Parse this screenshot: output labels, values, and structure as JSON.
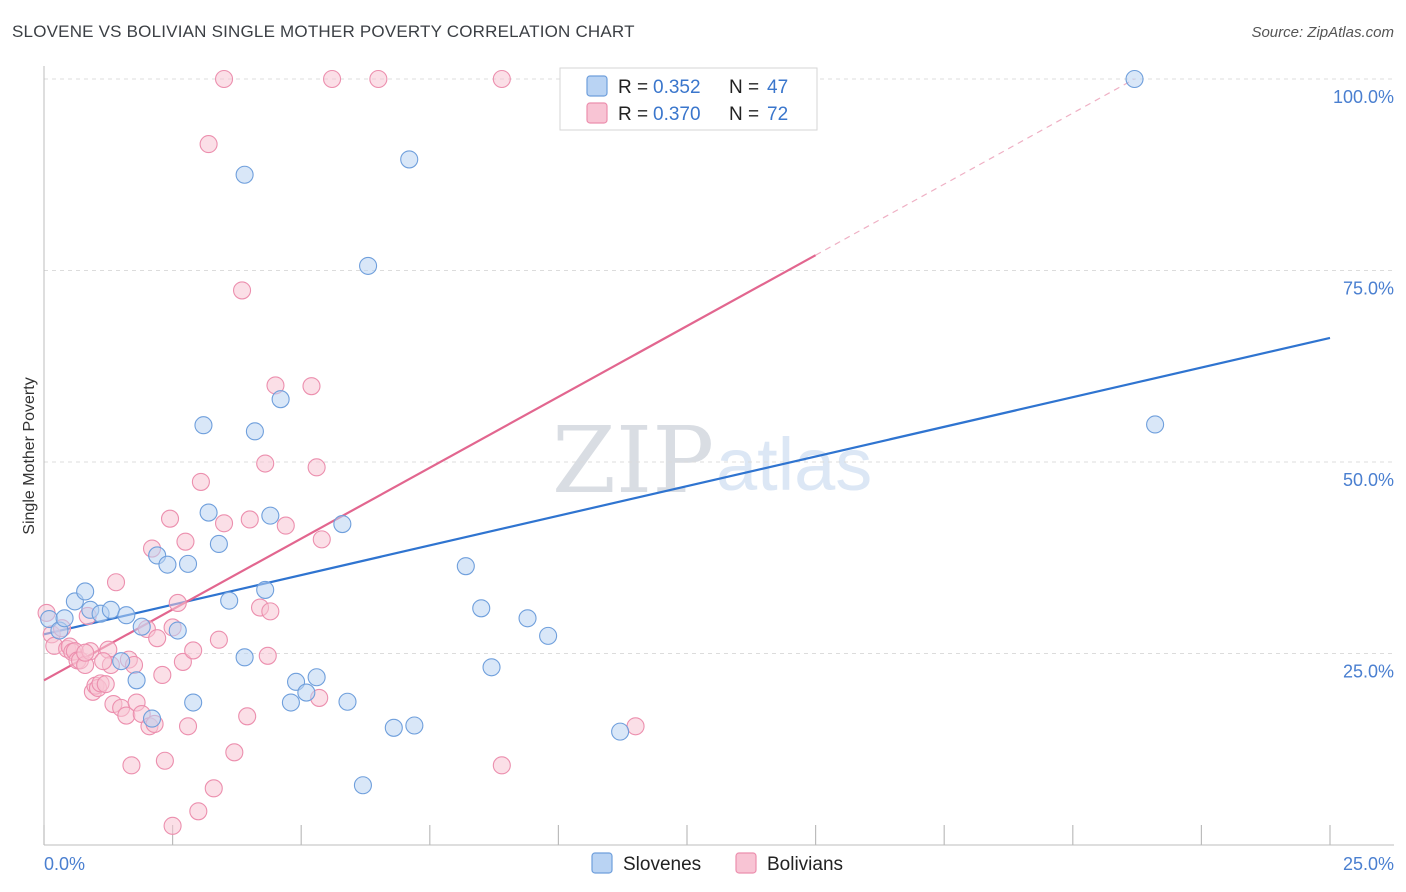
{
  "title": "SLOVENE VS BOLIVIAN SINGLE MOTHER POVERTY CORRELATION CHART",
  "source": "Source: ZipAtlas.com",
  "watermark": {
    "zip": "ZIP",
    "atlas": "atlas"
  },
  "legend": {
    "rows": [
      {
        "r_label": "R =",
        "r_value": "0.352",
        "n_label": "N =",
        "n_value": "47"
      },
      {
        "r_label": "R =",
        "r_value": "0.370",
        "n_label": "N =",
        "n_value": "72"
      }
    ]
  },
  "bottom_legend": [
    "Slovenes",
    "Bolivians"
  ],
  "colors": {
    "slovenes_fill": "#b9d3f3",
    "slovenes_stroke": "#6f9fdc",
    "slovenes_line": "#2f74d0",
    "bolivians_fill": "#f8c4d4",
    "bolivians_stroke": "#ec8fae",
    "bolivians_line": "#e2668f"
  },
  "chart_data": {
    "type": "scatter",
    "title": "SLOVENE VS BOLIVIAN SINGLE MOTHER POVERTY CORRELATION CHART",
    "xlabel": "",
    "ylabel": "Single Mother Poverty",
    "xlim": [
      0,
      25
    ],
    "ylim": [
      0,
      100
    ],
    "x_tick_labels": [
      "0.0%",
      "25.0%"
    ],
    "y_ticks": [
      25,
      50,
      75,
      100
    ],
    "y_tick_labels": [
      "25.0%",
      "50.0%",
      "75.0%",
      "100.0%"
    ],
    "grid": true,
    "series": [
      {
        "name": "Slovenes",
        "r": 0.352,
        "n": 47,
        "trend": {
          "x": [
            0,
            25
          ],
          "y": [
            27.5,
            66.2
          ]
        },
        "points": [
          [
            0.1,
            29.5
          ],
          [
            0.3,
            28.0
          ],
          [
            0.4,
            29.6
          ],
          [
            0.6,
            31.8
          ],
          [
            0.8,
            33.1
          ],
          [
            0.9,
            30.7
          ],
          [
            1.1,
            30.2
          ],
          [
            1.3,
            30.7
          ],
          [
            1.6,
            30.0
          ],
          [
            1.5,
            24.0
          ],
          [
            1.8,
            21.5
          ],
          [
            1.9,
            28.5
          ],
          [
            2.1,
            16.5
          ],
          [
            2.2,
            37.8
          ],
          [
            2.4,
            36.6
          ],
          [
            2.6,
            28.0
          ],
          [
            2.8,
            36.7
          ],
          [
            2.9,
            18.6
          ],
          [
            3.1,
            54.8
          ],
          [
            3.2,
            43.4
          ],
          [
            3.4,
            39.3
          ],
          [
            3.6,
            31.9
          ],
          [
            3.9,
            87.5
          ],
          [
            3.9,
            24.5
          ],
          [
            4.1,
            54.0
          ],
          [
            4.3,
            33.3
          ],
          [
            4.4,
            43.0
          ],
          [
            4.6,
            58.2
          ],
          [
            4.8,
            18.6
          ],
          [
            4.9,
            21.3
          ],
          [
            5.1,
            19.9
          ],
          [
            5.3,
            21.9
          ],
          [
            5.8,
            41.9
          ],
          [
            5.9,
            18.7
          ],
          [
            6.2,
            7.8
          ],
          [
            6.3,
            75.6
          ],
          [
            6.8,
            15.3
          ],
          [
            7.1,
            89.5
          ],
          [
            7.2,
            15.6
          ],
          [
            8.2,
            36.4
          ],
          [
            8.5,
            30.9
          ],
          [
            8.7,
            23.2
          ],
          [
            9.4,
            29.6
          ],
          [
            9.8,
            27.3
          ],
          [
            11.2,
            14.8
          ],
          [
            21.2,
            100.0
          ],
          [
            21.6,
            54.9
          ]
        ]
      },
      {
        "name": "Bolivians",
        "r": 0.37,
        "n": 72,
        "trend": {
          "x": [
            0,
            15
          ],
          "y": [
            21.5,
            77.0
          ]
        },
        "trend_extension": {
          "x": [
            15,
            21.2
          ],
          "y": [
            77.0,
            100.0
          ]
        },
        "points": [
          [
            0.05,
            30.3
          ],
          [
            0.15,
            27.5
          ],
          [
            0.2,
            26.0
          ],
          [
            0.35,
            28.3
          ],
          [
            0.45,
            25.6
          ],
          [
            0.5,
            25.9
          ],
          [
            0.55,
            25.2
          ],
          [
            0.6,
            25.3
          ],
          [
            0.65,
            24.1
          ],
          [
            0.7,
            24.1
          ],
          [
            0.8,
            23.5
          ],
          [
            0.85,
            29.9
          ],
          [
            0.9,
            25.3
          ],
          [
            0.95,
            20.0
          ],
          [
            1.0,
            20.8
          ],
          [
            1.05,
            20.5
          ],
          [
            1.1,
            21.1
          ],
          [
            1.2,
            21.0
          ],
          [
            1.25,
            25.5
          ],
          [
            1.3,
            23.5
          ],
          [
            1.35,
            18.4
          ],
          [
            1.4,
            34.3
          ],
          [
            1.5,
            17.9
          ],
          [
            1.6,
            16.9
          ],
          [
            1.65,
            24.2
          ],
          [
            1.7,
            10.4
          ],
          [
            1.75,
            23.5
          ],
          [
            1.8,
            18.6
          ],
          [
            1.9,
            17.1
          ],
          [
            2.0,
            28.2
          ],
          [
            2.05,
            15.5
          ],
          [
            2.1,
            38.7
          ],
          [
            2.15,
            15.8
          ],
          [
            2.2,
            27.0
          ],
          [
            2.3,
            22.2
          ],
          [
            2.35,
            11.0
          ],
          [
            2.5,
            28.4
          ],
          [
            2.6,
            31.6
          ],
          [
            2.7,
            23.9
          ],
          [
            2.75,
            39.6
          ],
          [
            2.8,
            15.5
          ],
          [
            2.9,
            25.4
          ],
          [
            3.0,
            4.4
          ],
          [
            3.05,
            47.4
          ],
          [
            3.3,
            7.4
          ],
          [
            3.4,
            26.8
          ],
          [
            3.5,
            42.0
          ],
          [
            3.7,
            12.1
          ],
          [
            3.85,
            72.4
          ],
          [
            3.95,
            16.8
          ],
          [
            4.0,
            42.5
          ],
          [
            4.2,
            31.0
          ],
          [
            4.3,
            49.8
          ],
          [
            4.35,
            24.7
          ],
          [
            4.4,
            30.5
          ],
          [
            4.5,
            60.0
          ],
          [
            4.7,
            41.7
          ],
          [
            5.2,
            59.9
          ],
          [
            5.3,
            49.3
          ],
          [
            5.35,
            19.2
          ],
          [
            5.4,
            39.9
          ],
          [
            3.5,
            100.0
          ],
          [
            5.6,
            100.0
          ],
          [
            6.5,
            100.0
          ],
          [
            8.9,
            100.0
          ],
          [
            3.2,
            91.5
          ],
          [
            2.5,
            2.5
          ],
          [
            8.9,
            10.4
          ],
          [
            11.5,
            15.5
          ],
          [
            0.8,
            25.1
          ],
          [
            1.15,
            24.0
          ],
          [
            2.45,
            42.6
          ]
        ]
      }
    ]
  }
}
